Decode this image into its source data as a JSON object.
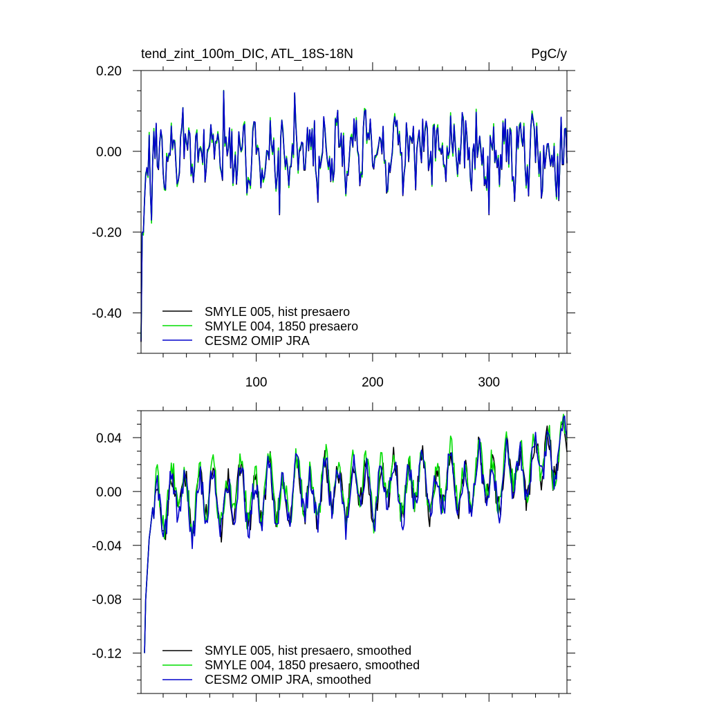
{
  "chart_data": [
    {
      "type": "line",
      "title": "tend_zint_100m_DIC, ATL_18S-18N",
      "units": "PgC/y",
      "xlim": [
        1,
        367
      ],
      "ylim": [
        -0.5,
        0.2
      ],
      "xticks": [
        100,
        200,
        300
      ],
      "xtick_labels": [
        "100",
        "200",
        "300"
      ],
      "yticks": [
        -0.4,
        -0.2,
        0.0,
        0.2
      ],
      "ytick_labels": [
        "-0.40",
        "-0.20",
        "0.00",
        "0.20"
      ],
      "grid": false,
      "legend_position": "bottom-left",
      "series": [
        {
          "name": "SMYLE 005, hist presaero",
          "color": "#000000",
          "type": "monthly"
        },
        {
          "name": "SMYLE 004, 1850 presaero",
          "color": "#00dd00",
          "type": "monthly"
        },
        {
          "name": "CESM2 OMIP JRA",
          "color": "#0000cc",
          "type": "monthly"
        }
      ],
      "key_points": {
        "x": [
          1,
          2,
          3,
          5,
          7,
          10,
          72,
          120,
          133,
          300,
          360,
          367
        ],
        "y": [
          -0.47,
          -0.3,
          -0.2,
          -0.08,
          -0.05,
          -0.17,
          0.15,
          -0.15,
          0.14,
          -0.15,
          -0.12,
          0.08
        ]
      }
    },
    {
      "type": "line",
      "title": "",
      "units": "",
      "xlim": [
        1,
        367
      ],
      "ylim": [
        -0.15,
        0.06
      ],
      "xticks": [
        100,
        200,
        300
      ],
      "xtick_labels": [
        "",
        "",
        ""
      ],
      "yticks": [
        -0.12,
        -0.08,
        -0.04,
        0.0,
        0.04
      ],
      "ytick_labels": [
        "-0.12",
        "-0.08",
        "-0.04",
        "0.00",
        "0.04"
      ],
      "grid": false,
      "legend_position": "bottom-left",
      "series": [
        {
          "name": "SMYLE 005, hist presaero, smoothed",
          "color": "#000000",
          "type": "smoothed"
        },
        {
          "name": "SMYLE 004, 1850 presaero, smoothed",
          "color": "#00dd00",
          "type": "smoothed"
        },
        {
          "name": "CESM2 OMIP JRA, smoothed",
          "color": "#0000cc",
          "type": "smoothed"
        }
      ],
      "key_points": {
        "x": [
          4,
          6,
          10,
          20,
          40,
          55,
          100,
          200,
          300,
          320,
          360,
          364,
          367
        ],
        "y": [
          -0.12,
          -0.065,
          -0.035,
          -0.01,
          0.01,
          0.03,
          0.03,
          0.03,
          0.035,
          0.04,
          0.06,
          0.04,
          0.05
        ]
      }
    }
  ]
}
